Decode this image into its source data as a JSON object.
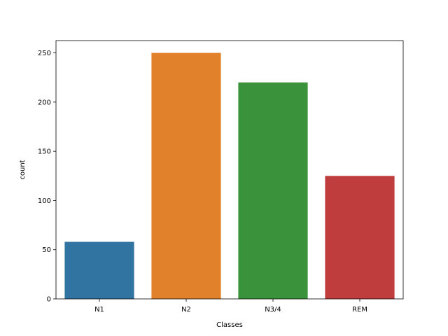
{
  "chart_data": {
    "type": "bar",
    "categories": [
      "N1",
      "N2",
      "N3/4",
      "REM"
    ],
    "values": [
      58,
      250,
      220,
      125
    ],
    "colors": [
      "#3274a1",
      "#e1812c",
      "#3a923a",
      "#c03d3e"
    ],
    "xlabel": "Classes",
    "ylabel": "count",
    "ylim": [
      0,
      262.5
    ],
    "yticks": [
      0,
      50,
      100,
      150,
      200,
      250
    ],
    "grid": false
  }
}
